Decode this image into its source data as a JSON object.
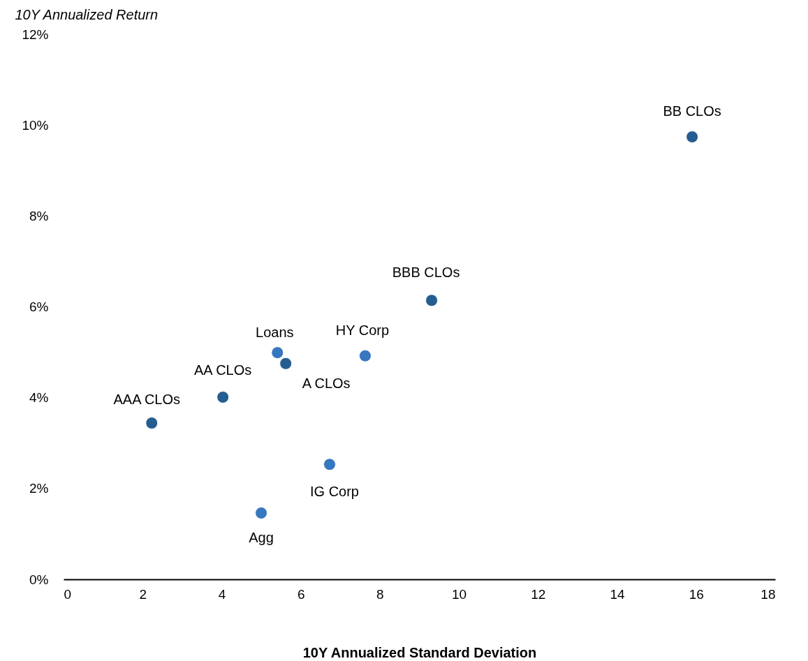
{
  "chart_data": {
    "type": "scatter",
    "xlabel": "10Y Annualized Standard Deviation",
    "ylabel": "10Y Annualized Return",
    "xlim": [
      0,
      18
    ],
    "xticks": [
      0,
      2,
      4,
      6,
      8,
      10,
      12,
      14,
      16,
      18
    ],
    "ylim": [
      0,
      12
    ],
    "yticks": [
      {
        "value": 0,
        "label": "0%"
      },
      {
        "value": 2,
        "label": "2%"
      },
      {
        "value": 4,
        "label": "4%"
      },
      {
        "value": 6,
        "label": "6%"
      },
      {
        "value": 8,
        "label": "8%"
      },
      {
        "value": 10,
        "label": "10%"
      },
      {
        "value": 12,
        "label": "12%"
      }
    ],
    "grid": false,
    "legend": false,
    "marker": "circle",
    "series": [
      {
        "name": "AAA CLOs",
        "color": "#255d90",
        "x": [
          2.23
        ],
        "values": [
          3.44
        ]
      },
      {
        "name": "AA CLOs",
        "color": "#255d90",
        "x": [
          4.03
        ],
        "values": [
          4.01
        ]
      },
      {
        "name": "A CLOs",
        "color": "#255d90",
        "x": [
          5.62
        ],
        "values": [
          4.75
        ]
      },
      {
        "name": "BBB CLOs",
        "color": "#255d90",
        "x": [
          9.31
        ],
        "values": [
          6.14
        ]
      },
      {
        "name": "BB CLOs",
        "color": "#255d90",
        "x": [
          15.9
        ],
        "values": [
          9.74
        ]
      },
      {
        "name": "Loans",
        "color": "#3777c0",
        "x": [
          5.41
        ],
        "values": [
          4.99
        ]
      },
      {
        "name": "HY Corp",
        "color": "#3777c0",
        "x": [
          7.63
        ],
        "values": [
          4.92
        ]
      },
      {
        "name": "IG Corp",
        "color": "#3777c0",
        "x": [
          6.73
        ],
        "values": [
          2.53
        ]
      },
      {
        "name": "Agg",
        "color": "#3777c0",
        "x": [
          5.0
        ],
        "values": [
          1.46
        ]
      }
    ]
  }
}
